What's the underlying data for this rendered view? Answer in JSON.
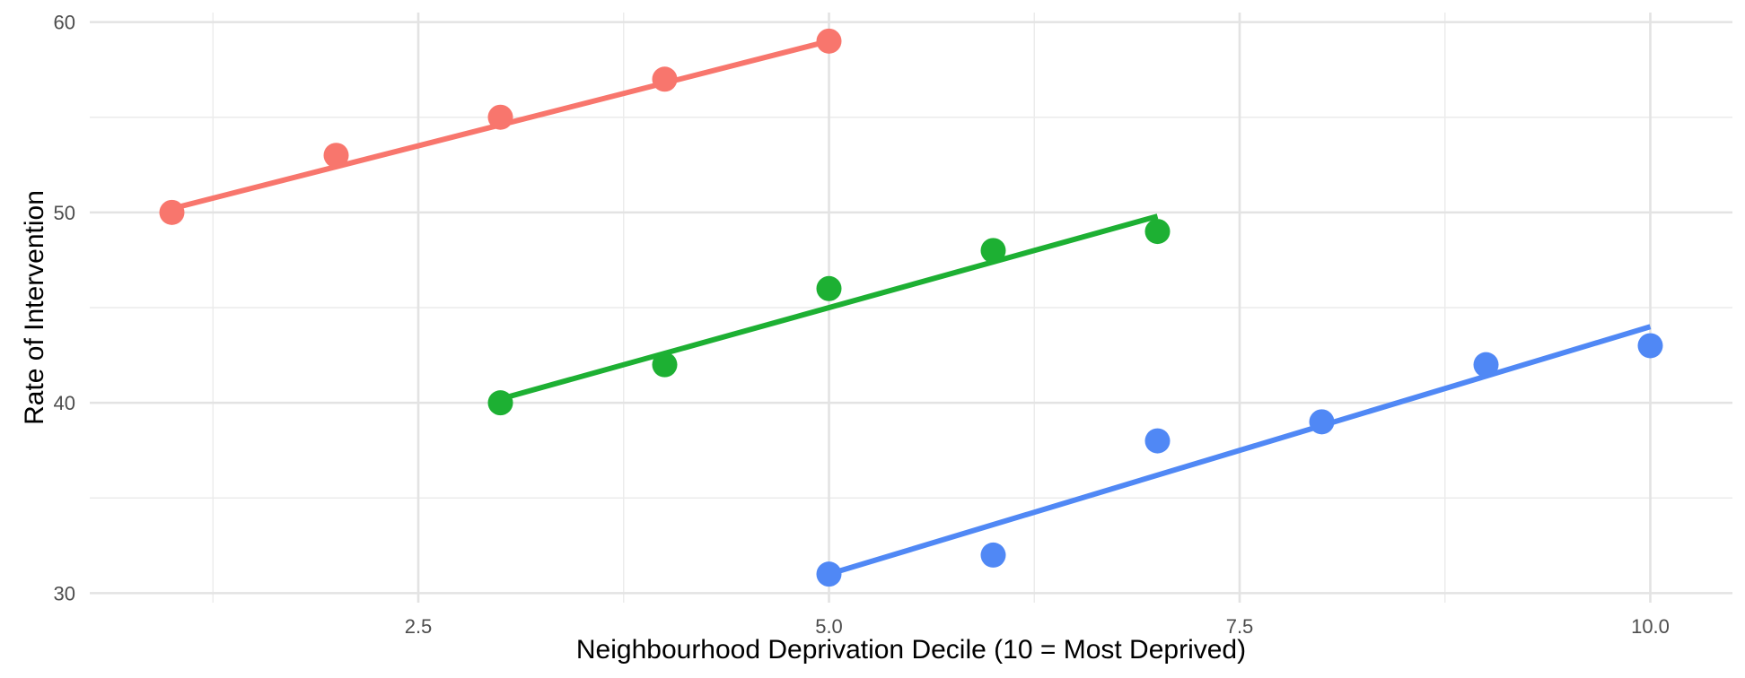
{
  "chart_data": {
    "type": "scatter",
    "title": "",
    "xlabel": "Neighbourhood Deprivation Decile (10 = Most Deprived)",
    "ylabel": "Rate of Intervention",
    "xlim": [
      0.5,
      10.5
    ],
    "ylim": [
      29.5,
      60.5
    ],
    "x_ticks": [
      2.5,
      5.0,
      7.5,
      10.0
    ],
    "x_tick_labels": [
      "2.5",
      "5.0",
      "7.5",
      "10.0"
    ],
    "x_minor_ticks": [
      1.25,
      3.75,
      6.25,
      8.75
    ],
    "y_ticks": [
      30,
      40,
      50,
      60
    ],
    "y_tick_labels": [
      "30",
      "40",
      "50",
      "60"
    ],
    "y_minor_ticks": [
      35,
      45,
      55
    ],
    "grid": true,
    "legend": "none",
    "series": [
      {
        "color": "#F8766D",
        "points": [
          {
            "x": 1,
            "y": 50
          },
          {
            "x": 2,
            "y": 53
          },
          {
            "x": 3,
            "y": 55
          },
          {
            "x": 4,
            "y": 57
          },
          {
            "x": 5,
            "y": 59
          }
        ],
        "fit": {
          "x": [
            1,
            5
          ],
          "y": [
            50.2,
            59.0
          ]
        }
      },
      {
        "color": "#1DB033",
        "points": [
          {
            "x": 3,
            "y": 40
          },
          {
            "x": 4,
            "y": 42
          },
          {
            "x": 5,
            "y": 46
          },
          {
            "x": 6,
            "y": 48
          },
          {
            "x": 7,
            "y": 49
          }
        ],
        "fit": {
          "x": [
            3,
            7
          ],
          "y": [
            40.2,
            49.8
          ]
        }
      },
      {
        "color": "#5088F5",
        "points": [
          {
            "x": 5,
            "y": 31
          },
          {
            "x": 6,
            "y": 32
          },
          {
            "x": 7,
            "y": 38
          },
          {
            "x": 8,
            "y": 39
          },
          {
            "x": 9,
            "y": 42
          },
          {
            "x": 10,
            "y": 43
          }
        ],
        "fit": {
          "x": [
            5,
            10
          ],
          "y": [
            31.0,
            44.0
          ]
        }
      }
    ]
  }
}
